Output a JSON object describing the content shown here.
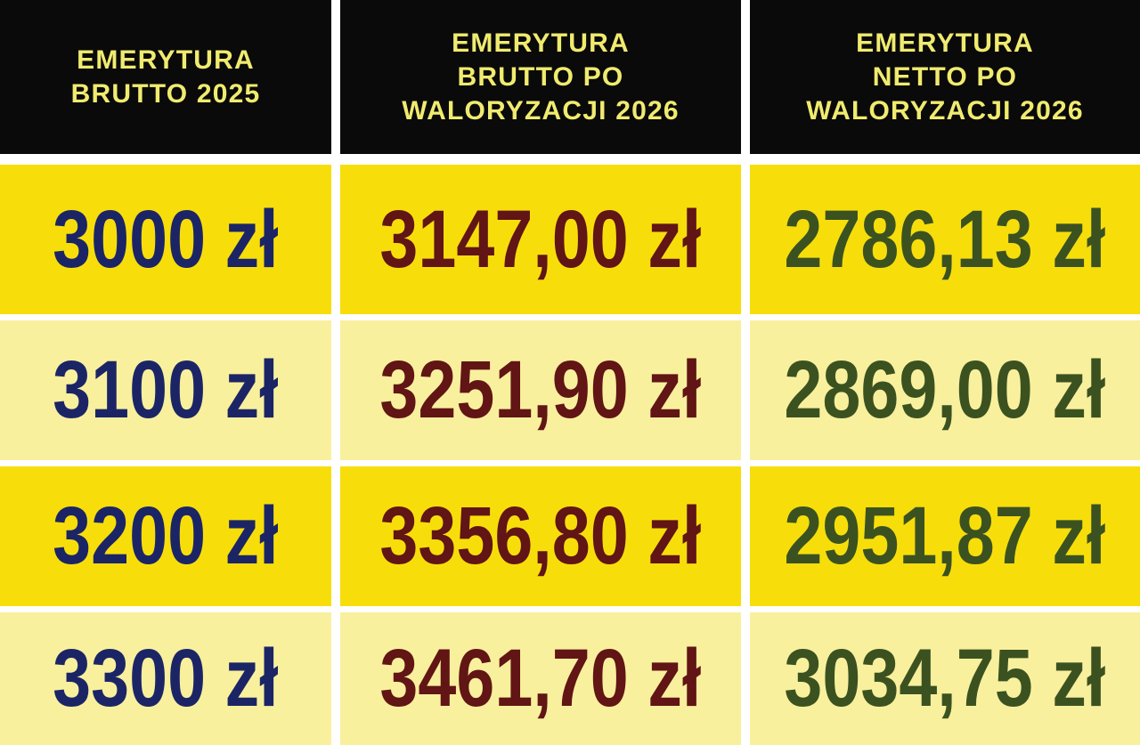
{
  "colors": {
    "page_bg": "#FFFFFF",
    "black": "#0A0A0A",
    "header_text": "#F0EB6F",
    "bright_yellow": "#F7DE0B",
    "pale_yellow": "#F9F09E",
    "navy": "#1B2566",
    "maroon": "#611514",
    "green": "#3B5220"
  },
  "headers": [
    {
      "label": "EMERYTURA BRUTTO 2025",
      "line1": "EMERYTURA",
      "line2": "BRUTTO 2025"
    },
    {
      "label": "EMERYTURA BRUTTO PO WALORYZACJI 2026",
      "line1": "EMERYTURA",
      "line2": "BRUTTO PO",
      "line3": "WALORYZACJI 2026"
    },
    {
      "label": "EMERYTURA NETTO PO WALORYZACJI 2026",
      "line1": "EMERYTURA",
      "line2": "NETTO PO",
      "line3": "WALORYZACJI 2026"
    }
  ],
  "rows": [
    {
      "cells": [
        "3000 zł",
        "3147,00 zł",
        "2786,13 zł"
      ]
    },
    {
      "cells": [
        "3100 zł",
        "3251,90 zł",
        "2869,00 zł"
      ]
    },
    {
      "cells": [
        "3200 zł",
        "3356,80 zł",
        "2951,87 zł"
      ]
    },
    {
      "cells": [
        "3300 zł",
        "3461,70 zł",
        "3034,75 zł"
      ]
    }
  ],
  "chart_data": {
    "type": "table",
    "columns": [
      "EMERYTURA BRUTTO 2025",
      "EMERYTURA BRUTTO PO WALORYZACJI 2026",
      "EMERYTURA NETTO PO WALORYZACJI 2026"
    ],
    "rows": [
      [
        "3000 zł",
        "3147,00 zł",
        "2786,13 zł"
      ],
      [
        "3100 zł",
        "3251,90 zł",
        "2869,00 zł"
      ],
      [
        "3200 zł",
        "3356,80 zł",
        "2951,87 zł"
      ],
      [
        "3300 zł",
        "3461,70 zł",
        "3034,75 zł"
      ]
    ],
    "values_numeric": [
      [
        3000,
        3147.0,
        2786.13
      ],
      [
        3100,
        3251.9,
        2869.0
      ],
      [
        3200,
        3356.8,
        2951.87
      ],
      [
        3300,
        3461.7,
        3034.75
      ]
    ],
    "currency": "zł"
  }
}
